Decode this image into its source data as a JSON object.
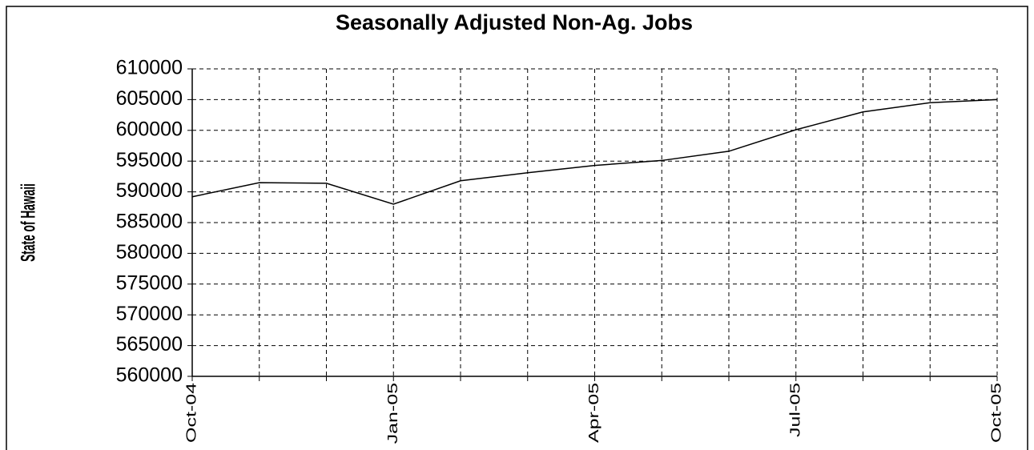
{
  "chart_data": {
    "type": "line",
    "title": "Seasonally Adjusted Non-Ag. Jobs",
    "y_label": "State of Hawaii",
    "categories": [
      "Oct-04",
      null,
      null,
      "Jan-05",
      null,
      null,
      "Apr-05",
      null,
      null,
      "Jul-05",
      null,
      null,
      "Oct-05"
    ],
    "series": [
      {
        "name": "State of Hawaii",
        "color": "#000000",
        "values": [
          589200,
          591500,
          591400,
          588000,
          591800,
          593100,
          594300,
          595100,
          596600,
          600100,
          603000,
          604500,
          605000
        ]
      }
    ],
    "ylim": [
      560000,
      610000
    ],
    "yticks": [
      560000,
      565000,
      570000,
      575000,
      580000,
      585000,
      590000,
      595000,
      600000,
      605000,
      610000
    ],
    "grid": true
  }
}
